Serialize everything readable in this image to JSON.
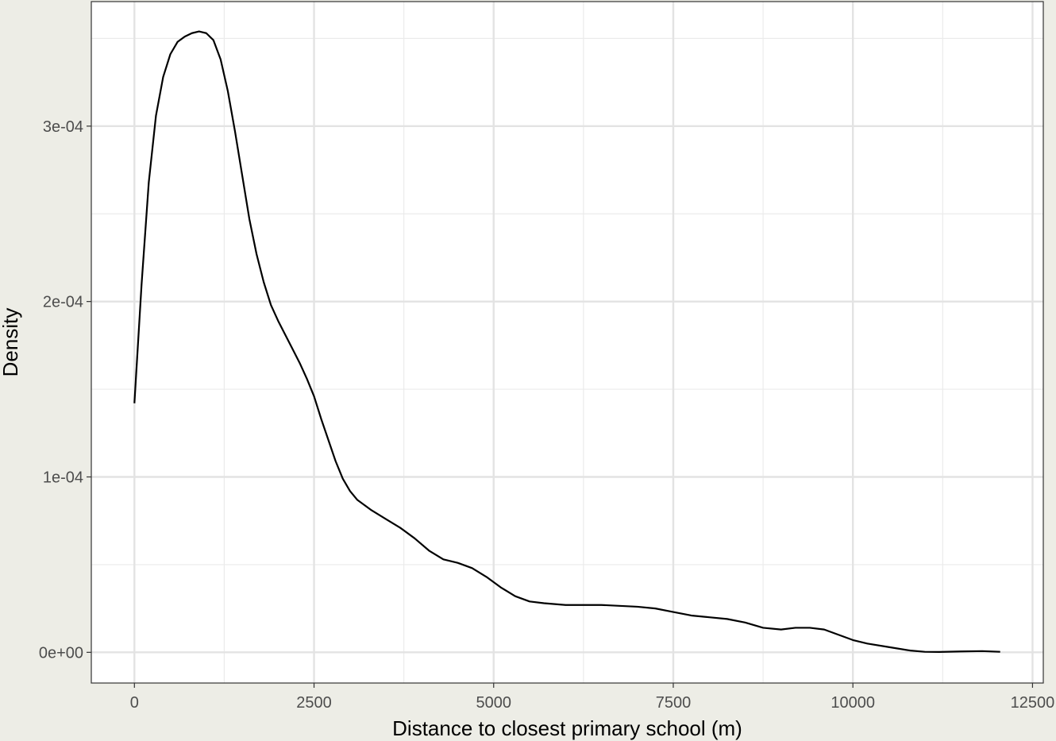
{
  "chart_data": {
    "type": "line",
    "title": "",
    "xlabel": "Distance to closest primary school (m)",
    "ylabel": "Density",
    "xlim": [
      -600,
      12650
    ],
    "ylim": [
      -1.75e-05,
      0.000371
    ],
    "x_ticks": [
      0,
      2500,
      5000,
      7500,
      10000,
      12500
    ],
    "x_tick_labels": [
      "0",
      "2500",
      "5000",
      "7500",
      "10000",
      "12500"
    ],
    "y_ticks": [
      0,
      0.0001,
      0.0002,
      0.0003
    ],
    "y_tick_labels": [
      "0e+00",
      "1e-04",
      "2e-04",
      "3e-04"
    ],
    "grid": true,
    "series": [
      {
        "color": "#000000",
        "x": [
          0,
          100,
          200,
          300,
          400,
          500,
          600,
          700,
          800,
          900,
          1000,
          1100,
          1200,
          1300,
          1400,
          1500,
          1600,
          1700,
          1800,
          1900,
          2000,
          2100,
          2200,
          2300,
          2400,
          2500,
          2600,
          2700,
          2800,
          2900,
          3000,
          3100,
          3200,
          3300,
          3500,
          3700,
          3900,
          4100,
          4300,
          4500,
          4700,
          4900,
          5100,
          5300,
          5500,
          5700,
          6000,
          6500,
          7000,
          7250,
          7500,
          7750,
          8000,
          8250,
          8500,
          8750,
          9000,
          9200,
          9400,
          9600,
          9800,
          10000,
          10200,
          10500,
          10800,
          11000,
          11200,
          11500,
          11800,
          12050
        ],
        "y": [
          0.000142,
          0.00021,
          0.000268,
          0.000306,
          0.000328,
          0.000341,
          0.000348,
          0.000351,
          0.000353,
          0.000354,
          0.000353,
          0.000349,
          0.000338,
          0.00032,
          0.000297,
          0.000272,
          0.000247,
          0.000227,
          0.000211,
          0.000198,
          0.000189,
          0.000181,
          0.000173,
          0.000165,
          0.000156,
          0.000146,
          0.000133,
          0.000121,
          0.000109,
          9.9e-05,
          9.2e-05,
          8.7e-05,
          8.4e-05,
          8.1e-05,
          7.6e-05,
          7.1e-05,
          6.5e-05,
          5.8e-05,
          5.3e-05,
          5.1e-05,
          4.8e-05,
          4.3e-05,
          3.7e-05,
          3.2e-05,
          2.9e-05,
          2.8e-05,
          2.7e-05,
          2.7e-05,
          2.6e-05,
          2.5e-05,
          2.3e-05,
          2.1e-05,
          2e-05,
          1.9e-05,
          1.7e-05,
          1.4e-05,
          1.3e-05,
          1.4e-05,
          1.4e-05,
          1.3e-05,
          1e-05,
          7e-06,
          5e-06,
          3e-06,
          1e-06,
          3e-07,
          2e-07,
          5e-07,
          7e-07,
          3e-07
        ]
      }
    ]
  }
}
